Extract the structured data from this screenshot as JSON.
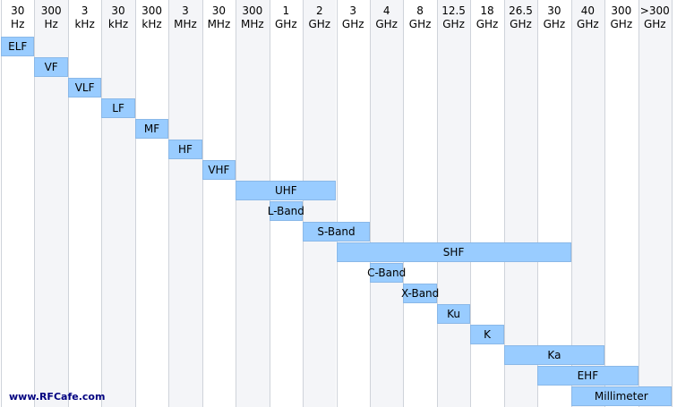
{
  "chart_data": {
    "type": "gantt-range",
    "columns": [
      {
        "top": "30",
        "bottom": "Hz"
      },
      {
        "top": "300",
        "bottom": "Hz"
      },
      {
        "top": "3",
        "bottom": "kHz"
      },
      {
        "top": "30",
        "bottom": "kHz"
      },
      {
        "top": "300",
        "bottom": "kHz"
      },
      {
        "top": "3",
        "bottom": "MHz"
      },
      {
        "top": "30",
        "bottom": "MHz"
      },
      {
        "top": "300",
        "bottom": "MHz"
      },
      {
        "top": "1",
        "bottom": "GHz"
      },
      {
        "top": "2",
        "bottom": "GHz"
      },
      {
        "top": "3",
        "bottom": "GHz"
      },
      {
        "top": "4",
        "bottom": "GHz"
      },
      {
        "top": "8",
        "bottom": "GHz"
      },
      {
        "top": "12.5",
        "bottom": "GHz"
      },
      {
        "top": "18",
        "bottom": "GHz"
      },
      {
        "top": "26.5",
        "bottom": "GHz"
      },
      {
        "top": "30",
        "bottom": "GHz"
      },
      {
        "top": "40",
        "bottom": "GHz"
      },
      {
        "top": "300",
        "bottom": "GHz"
      },
      {
        "top": ">300",
        "bottom": "GHz"
      }
    ],
    "bands": [
      {
        "name": "ELF",
        "start": 0,
        "end": 1
      },
      {
        "name": "VF",
        "start": 1,
        "end": 2
      },
      {
        "name": "VLF",
        "start": 2,
        "end": 3
      },
      {
        "name": "LF",
        "start": 3,
        "end": 4
      },
      {
        "name": "MF",
        "start": 4,
        "end": 5
      },
      {
        "name": "HF",
        "start": 5,
        "end": 6
      },
      {
        "name": "VHF",
        "start": 6,
        "end": 7
      },
      {
        "name": "UHF",
        "start": 7,
        "end": 10
      },
      {
        "name": "L-Band",
        "start": 8,
        "end": 9
      },
      {
        "name": "S-Band",
        "start": 9,
        "end": 11
      },
      {
        "name": "SHF",
        "start": 10,
        "end": 17
      },
      {
        "name": "C-Band",
        "start": 11,
        "end": 12
      },
      {
        "name": "X-Band",
        "start": 12,
        "end": 13
      },
      {
        "name": "Ku",
        "start": 13,
        "end": 14
      },
      {
        "name": "K",
        "start": 14,
        "end": 15
      },
      {
        "name": "Ka",
        "start": 15,
        "end": 18
      },
      {
        "name": "EHF",
        "start": 16,
        "end": 19
      },
      {
        "name": "Millimeter",
        "start": 17,
        "end": 20
      }
    ]
  },
  "colors": {
    "bar_fill": "#99ccff",
    "bar_border": "#8ab8e8",
    "gridline": "#cfd3da",
    "watermark": "#000080"
  },
  "watermark": "www.RFCafe.com"
}
